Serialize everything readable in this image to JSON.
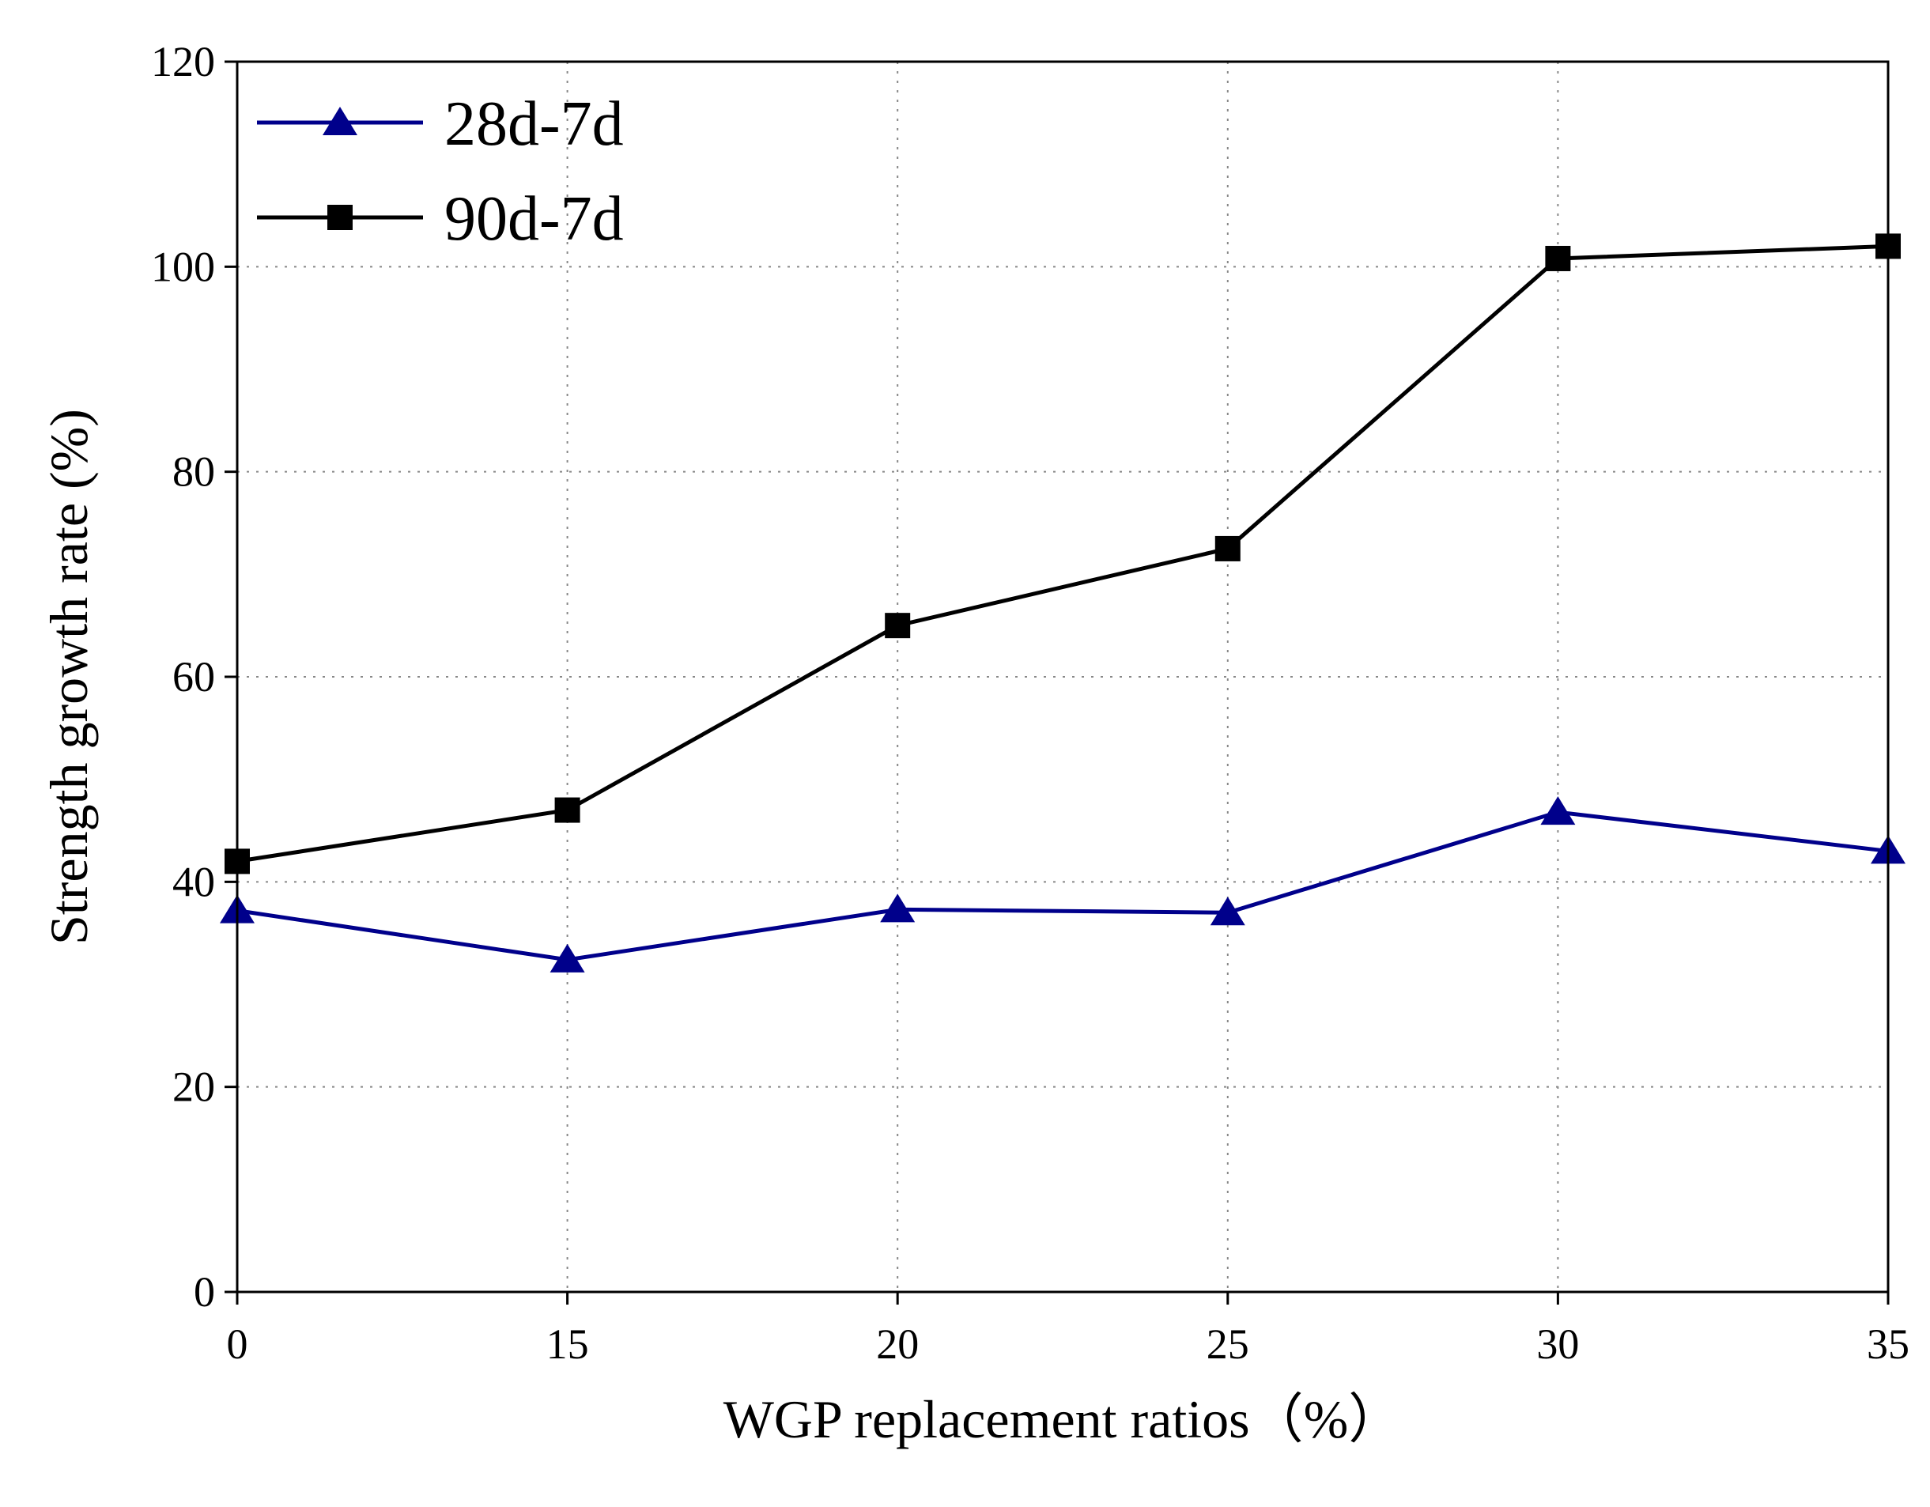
{
  "chart_data": {
    "type": "line",
    "title": "",
    "xlabel": "WGP replacement ratios（%）",
    "ylabel": "Strength growth rate (%)",
    "categories": [
      "0",
      "15",
      "20",
      "25",
      "30",
      "35"
    ],
    "y_ticks": [
      "0",
      "20",
      "40",
      "60",
      "80",
      "100",
      "120"
    ],
    "ylim": [
      0,
      120
    ],
    "grid": true,
    "legend_position": "top-left",
    "series": [
      {
        "name": "28d-7d",
        "color": "#00008b",
        "marker": "triangle",
        "values": [
          37.2,
          32.4,
          37.3,
          37.0,
          46.8,
          43.0
        ]
      },
      {
        "name": "90d-7d",
        "color": "#000000",
        "marker": "square",
        "values": [
          42.0,
          47.0,
          65.0,
          72.5,
          100.8,
          102.0
        ]
      }
    ]
  }
}
